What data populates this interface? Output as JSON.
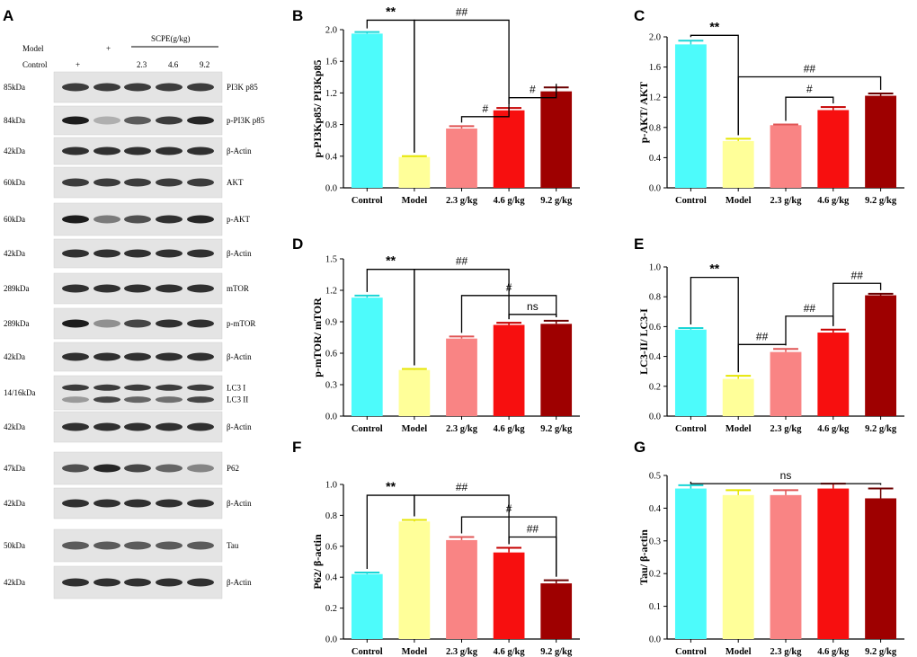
{
  "panel_a": {
    "letter": "A",
    "header": {
      "model_label": "Model",
      "control_label": "Control",
      "scpe_label": "SCPE(g/kg)",
      "model_mark": "+",
      "control_mark": "+",
      "doses": [
        "2.3",
        "4.6",
        "9.2"
      ]
    },
    "blots": [
      {
        "kda": "85kDa",
        "protein": [
          "PI3K p85"
        ],
        "intensity": [
          0.8,
          0.8,
          0.8,
          0.8,
          0.8
        ]
      },
      {
        "kda": "84kDa",
        "protein": [
          "p-PI3K p85"
        ],
        "intensity": [
          0.95,
          0.25,
          0.65,
          0.8,
          0.9
        ]
      },
      {
        "kda": "42kDa",
        "protein": [
          "β-Actin"
        ],
        "intensity": [
          0.85,
          0.85,
          0.85,
          0.85,
          0.85
        ]
      },
      {
        "kda": "60kDa",
        "protein": [
          "AKT"
        ],
        "intensity": [
          0.8,
          0.8,
          0.8,
          0.8,
          0.8
        ]
      },
      {
        "kda": "60kDa",
        "protein": [
          "p-AKT"
        ],
        "intensity": [
          0.95,
          0.5,
          0.7,
          0.85,
          0.9
        ]
      },
      {
        "kda": "42kDa",
        "protein": [
          "β-Actin"
        ],
        "intensity": [
          0.85,
          0.85,
          0.85,
          0.85,
          0.85
        ]
      },
      {
        "kda": "289kDa",
        "protein": [
          "mTOR"
        ],
        "intensity": [
          0.85,
          0.85,
          0.85,
          0.85,
          0.85
        ]
      },
      {
        "kda": "289kDa",
        "protein": [
          "p-mTOR"
        ],
        "intensity": [
          0.95,
          0.4,
          0.75,
          0.85,
          0.85
        ]
      },
      {
        "kda": "42kDa",
        "protein": [
          "β-Actin"
        ],
        "intensity": [
          0.85,
          0.85,
          0.85,
          0.85,
          0.85
        ]
      },
      {
        "kda": "14/16kDa",
        "protein": [
          "LC3 I",
          "LC3 II"
        ],
        "intensity": [
          0.8,
          0.8,
          0.8,
          0.8,
          0.8
        ],
        "intensity2": [
          0.35,
          0.75,
          0.6,
          0.55,
          0.75
        ]
      },
      {
        "kda": "42kDa",
        "protein": [
          "β-Actin"
        ],
        "intensity": [
          0.85,
          0.85,
          0.85,
          0.85,
          0.85
        ]
      },
      {
        "kda": "47kDa",
        "protein": [
          "P62"
        ],
        "intensity": [
          0.7,
          0.9,
          0.75,
          0.6,
          0.45
        ]
      },
      {
        "kda": "42kDa",
        "protein": [
          "β-Actin"
        ],
        "intensity": [
          0.85,
          0.85,
          0.85,
          0.85,
          0.85
        ]
      },
      {
        "kda": "50kDa",
        "protein": [
          "Tau"
        ],
        "intensity": [
          0.65,
          0.65,
          0.65,
          0.65,
          0.65
        ]
      },
      {
        "kda": "42kDa",
        "protein": [
          "β-Actin"
        ],
        "intensity": [
          0.85,
          0.85,
          0.85,
          0.85,
          0.85
        ]
      }
    ]
  },
  "colors": {
    "Control": "#4dfbfb",
    "Model": "#ffff99",
    "dose_2_3": "#f98484",
    "dose_4_6": "#f70f0f",
    "dose_9_2": "#9e0000",
    "err_Control": "#1ad6d6",
    "err_Model": "#e6e600",
    "err_dose_2_3": "#e05555",
    "err_dose_4_6": "#c60000",
    "err_dose_9_2": "#6b0000"
  },
  "chart_data": [
    {
      "panel": "B",
      "type": "bar",
      "categories": [
        "Control",
        "Model",
        "2.3 g/kg",
        "4.6 g/kg",
        "9.2 g/kg"
      ],
      "values": [
        1.95,
        0.39,
        0.75,
        0.98,
        1.22
      ],
      "errors": [
        0.02,
        0.01,
        0.03,
        0.03,
        0.05
      ],
      "ylabel": "p-PI3Kp85/ PI3Kp85",
      "ylim": [
        0,
        2.0
      ],
      "ticks": [
        "0.0",
        "0.4",
        "0.8",
        "1.2",
        "1.6",
        "2.0"
      ],
      "annotations": [
        {
          "label": "**",
          "from": 0,
          "to": 1,
          "level": 2.12
        },
        {
          "label": "##",
          "from": 1,
          "to": 3,
          "level": 2.12
        },
        {
          "label": "#",
          "from": 2,
          "to": 3,
          "level": 0.9
        },
        {
          "label": "#",
          "from": 3,
          "to": 4,
          "level": 1.14
        }
      ]
    },
    {
      "panel": "C",
      "type": "bar",
      "categories": [
        "Control",
        "Model",
        "2.3 g/kg",
        "4.6 g/kg",
        "9.2 g/kg"
      ],
      "values": [
        1.9,
        0.62,
        0.83,
        1.03,
        1.22
      ],
      "errors": [
        0.05,
        0.03,
        0.01,
        0.04,
        0.03
      ],
      "ylabel": "p-AKT/ AKT",
      "ylim": [
        0,
        2.0
      ],
      "ticks": [
        "0.0",
        "0.4",
        "0.8",
        "1.2",
        "1.6",
        "2.0"
      ],
      "annotations": [
        {
          "label": "**",
          "from": 0,
          "to": 1,
          "level": 2.02
        },
        {
          "label": "##",
          "from": 1,
          "to": 4,
          "level": 1.47
        },
        {
          "label": "#",
          "from": 2,
          "to": 3,
          "level": 1.2
        }
      ]
    },
    {
      "panel": "D",
      "type": "bar",
      "categories": [
        "Control",
        "Model",
        "2.3 g/kg",
        "4.6 g/kg",
        "9.2 g/kg"
      ],
      "values": [
        1.13,
        0.44,
        0.74,
        0.87,
        0.88
      ],
      "errors": [
        0.02,
        0.01,
        0.02,
        0.02,
        0.03
      ],
      "ylabel": "p-mTOR/ mTOR",
      "ylim": [
        0,
        1.5
      ],
      "ticks": [
        "0.0",
        "0.3",
        "0.6",
        "0.9",
        "1.2",
        "1.5"
      ],
      "annotations": [
        {
          "label": "**",
          "from": 0,
          "to": 1,
          "level": 1.4
        },
        {
          "label": "##",
          "from": 1,
          "to": 3,
          "level": 1.4
        },
        {
          "label": "#",
          "from": 2,
          "to": 4,
          "level": 1.15
        },
        {
          "label": "ns",
          "from": 3,
          "to": 4,
          "level": 0.97
        }
      ]
    },
    {
      "panel": "E",
      "type": "bar",
      "categories": [
        "Control",
        "Model",
        "2.3 g/kg",
        "4.6 g/kg",
        "9.2 g/kg"
      ],
      "values": [
        0.58,
        0.25,
        0.43,
        0.56,
        0.81
      ],
      "errors": [
        0.01,
        0.02,
        0.02,
        0.02,
        0.01
      ],
      "ylabel": "LC3-II/ LC3-I",
      "ylim": [
        0,
        1.0
      ],
      "ticks": [
        "0.0",
        "0.2",
        "0.4",
        "0.6",
        "0.8",
        "1.0"
      ],
      "annotations": [
        {
          "label": "**",
          "from": 0,
          "to": 1,
          "level": 0.93
        },
        {
          "label": "##",
          "from": 1,
          "to": 2,
          "level": 0.48
        },
        {
          "label": "##",
          "from": 2,
          "to": 3,
          "level": 0.67
        },
        {
          "label": "##",
          "from": 3,
          "to": 4,
          "level": 0.89
        }
      ]
    },
    {
      "panel": "F",
      "type": "bar",
      "categories": [
        "Control",
        "Model",
        "2.3 g/kg",
        "4.6 g/kg",
        "9.2 g/kg"
      ],
      "values": [
        0.42,
        0.76,
        0.64,
        0.56,
        0.36
      ],
      "errors": [
        0.01,
        0.01,
        0.02,
        0.03,
        0.02
      ],
      "ylabel": "P62/ β-actin",
      "ylim": [
        0,
        1.0
      ],
      "ticks": [
        "0.0",
        "0.2",
        "0.4",
        "0.6",
        "0.8",
        "1.0"
      ],
      "annotations": [
        {
          "label": "**",
          "from": 0,
          "to": 1,
          "level": 0.93
        },
        {
          "label": "##",
          "from": 1,
          "to": 3,
          "level": 0.93
        },
        {
          "label": "#",
          "from": 2,
          "to": 4,
          "level": 0.79
        },
        {
          "label": "##",
          "from": 3,
          "to": 4,
          "level": 0.66
        }
      ]
    },
    {
      "panel": "G",
      "type": "bar",
      "categories": [
        "Control",
        "Model",
        "2.3 g/kg",
        "4.6 g/kg",
        "9.2 g/kg"
      ],
      "values": [
        0.46,
        0.44,
        0.44,
        0.46,
        0.43
      ],
      "errors": [
        0.01,
        0.015,
        0.015,
        0.015,
        0.03
      ],
      "ylabel": "Tau/ β-actin",
      "ylim": [
        0,
        0.5
      ],
      "ticks": [
        "0.0",
        "0.1",
        "0.2",
        "0.3",
        "0.4",
        "0.5"
      ],
      "annotations": [
        {
          "label": "ns",
          "from": 0,
          "to": 4,
          "level": 0.475
        }
      ]
    }
  ]
}
